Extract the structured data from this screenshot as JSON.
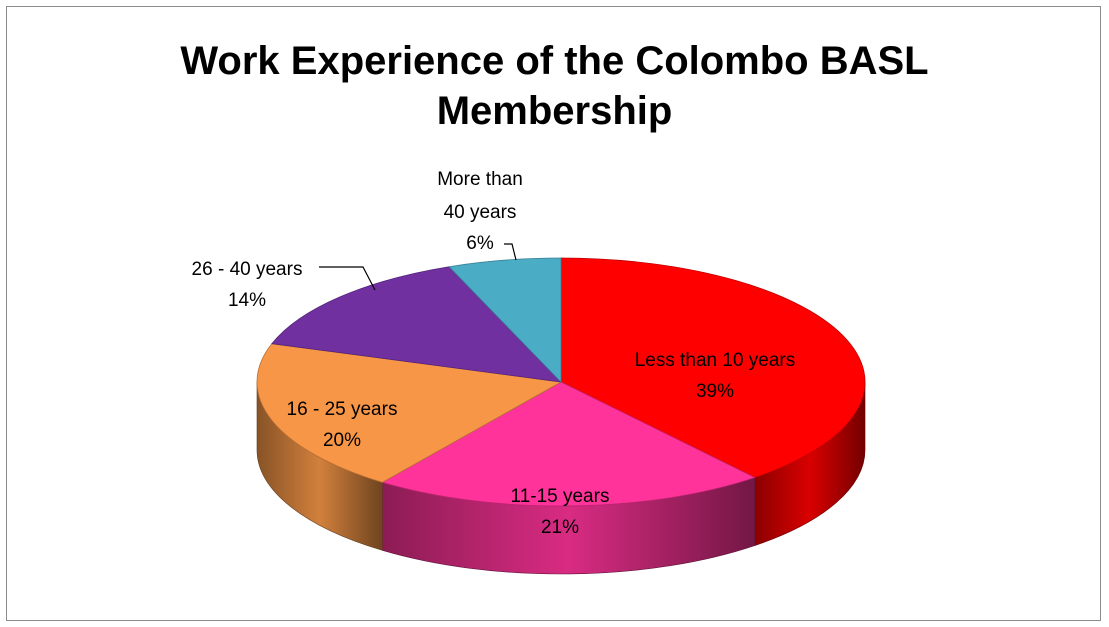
{
  "chart_data": {
    "type": "pie",
    "title_lines": [
      "Work Experience of the Colombo BASL",
      "Membership"
    ],
    "slices": [
      {
        "category": "Less than 10 years",
        "percent_label": "39%",
        "value": 39,
        "color": "#ff0000"
      },
      {
        "category": "11-15 years",
        "percent_label": "21%",
        "value": 21,
        "color": "#ff3399"
      },
      {
        "category": "16 - 25 years",
        "percent_label": "20%",
        "value": 20,
        "color": "#f79646"
      },
      {
        "category": "26 - 40 years",
        "percent_label": "14%",
        "value": 14,
        "color": "#7030a0"
      },
      {
        "category": "More than 40 years",
        "percent_label": "6%",
        "value": 6,
        "color": "#4bacc6"
      }
    ],
    "legend": "none",
    "data_labels": "category and percentage",
    "style": "3d-pie"
  }
}
